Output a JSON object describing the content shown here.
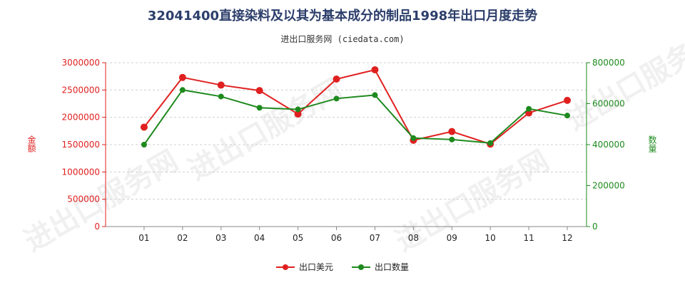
{
  "title": "32041400直接染料及以其为基本成分的制品1998年出口月度走势",
  "subtitle": "进出口服务网 (ciedata.com)",
  "watermark": "进出口服务网",
  "chart_data": {
    "type": "line",
    "categories": [
      "01",
      "02",
      "03",
      "04",
      "05",
      "06",
      "07",
      "08",
      "09",
      "10",
      "11",
      "12"
    ],
    "series": [
      {
        "name": "出口美元",
        "axis": "left",
        "color": "#e02020",
        "values": [
          1820000,
          2730000,
          2590000,
          2490000,
          2060000,
          2700000,
          2870000,
          1580000,
          1740000,
          1510000,
          2080000,
          2310000
        ]
      },
      {
        "name": "出口数量",
        "axis": "right",
        "color": "#1e8a1e",
        "values": [
          400000,
          667000,
          635000,
          580000,
          572000,
          625000,
          642000,
          432000,
          425000,
          408000,
          575000,
          542000
        ]
      }
    ],
    "yleft": {
      "label": "金额",
      "min": 0,
      "max": 3000000,
      "ticks": [
        0,
        500000,
        1000000,
        1500000,
        2000000,
        2500000,
        3000000
      ],
      "color": "#e02020"
    },
    "yright": {
      "label": "数量",
      "min": 0,
      "max": 800000,
      "ticks": [
        0,
        200000,
        400000,
        600000,
        800000
      ],
      "color": "#1e8a1e"
    },
    "grid": true
  }
}
